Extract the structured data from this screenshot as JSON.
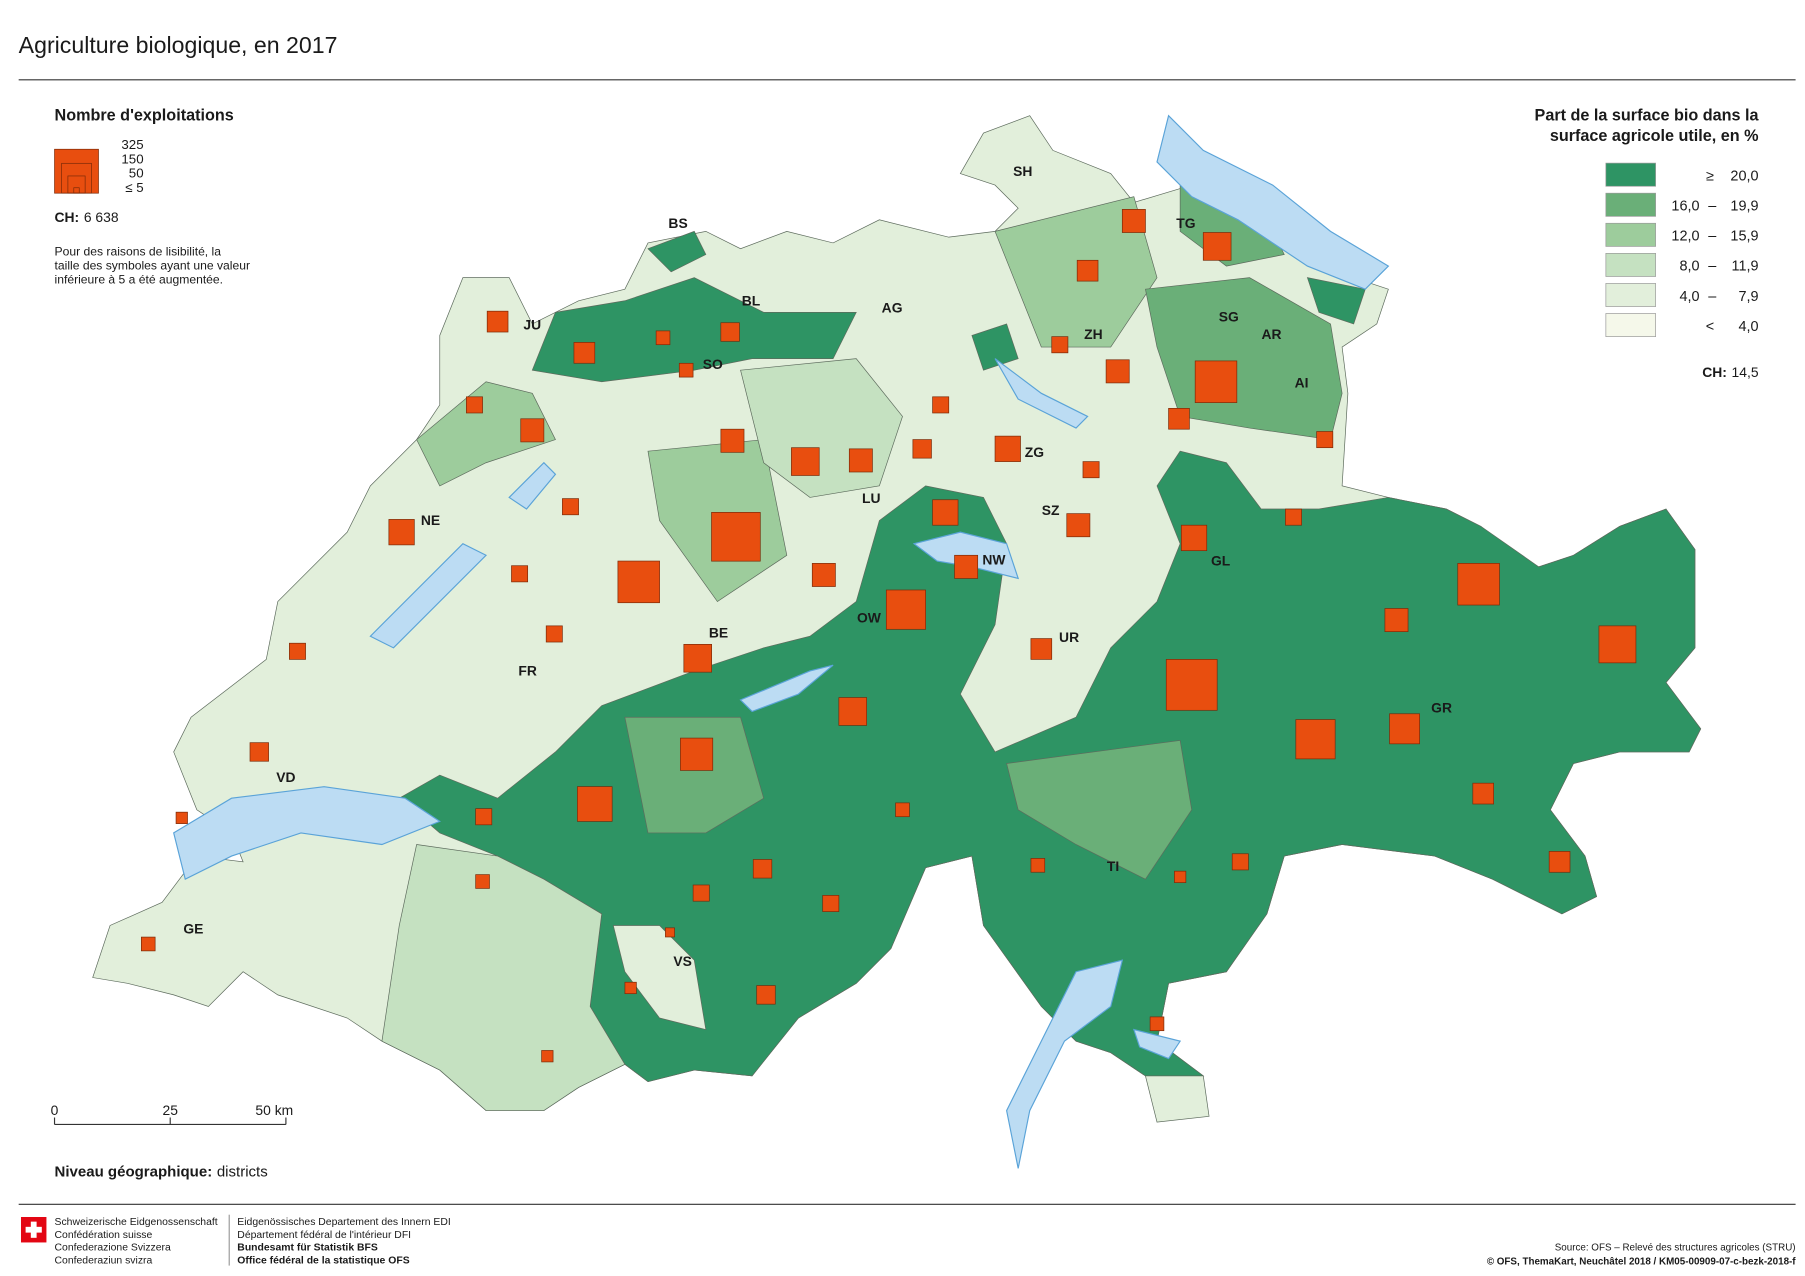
{
  "header": {
    "title": "Agriculture biologique, en 2017"
  },
  "symbol_legend": {
    "title": "Nombre d'exploitations",
    "sizes": [
      325,
      150,
      50,
      {
        "value": 5,
        "label": "≤ 5"
      }
    ],
    "total_label": "CH:",
    "total_value": "6 638",
    "note": [
      "Pour des raisons de lisibilité, la",
      "taille des symboles ayant une valeur",
      "inférieure à 5 a été augmentée."
    ]
  },
  "class_legend": {
    "title": [
      "Part de la surface bio dans la",
      "surface agricole utile, en %"
    ],
    "dash": "–",
    "classes": [
      {
        "color": "#2e9464",
        "lower": "≥",
        "upper": "20,0"
      },
      {
        "color": "#6aaf78",
        "lower": "16,0",
        "upper": "19,9"
      },
      {
        "color": "#9dcc9c",
        "lower": "12,0",
        "upper": "15,9"
      },
      {
        "color": "#c5e1c1",
        "lower": "8,0",
        "upper": "11,9"
      },
      {
        "color": "#e2efdb",
        "lower": "4,0",
        "upper": "7,9"
      },
      {
        "color": "#f5f8ea",
        "lower": "<",
        "upper": "4,0"
      }
    ],
    "total_label": "CH:",
    "total_value": "14,5"
  },
  "map": {
    "cantons": [
      "JU",
      "BS",
      "BL",
      "SO",
      "AG",
      "SH",
      "TG",
      "ZH",
      "SG",
      "AR",
      "AI",
      "ZG",
      "LU",
      "SZ",
      "NW",
      "GL",
      "OW",
      "NE",
      "BE",
      "UR",
      "FR",
      "GR",
      "VD",
      "TI",
      "GE",
      "VS"
    ],
    "symbols": [
      73,
      73,
      32,
      58,
      32,
      44,
      90,
      44,
      109,
      44,
      292,
      400,
      130,
      44,
      44,
      58,
      22,
      32,
      44,
      203,
      176,
      130,
      58,
      44,
      44,
      58,
      32,
      260,
      90,
      109,
      109,
      90,
      73,
      436,
      109,
      260,
      152,
      292,
      230,
      90,
      73,
      73,
      44,
      292,
      73,
      44,
      44,
      130,
      90,
      73,
      90,
      44,
      90,
      130,
      90,
      90,
      58,
      44,
      44,
      32,
      32,
      22,
      22,
      22,
      14,
      32
    ]
  },
  "scale": {
    "ticks": [
      "0",
      "25",
      "50 km"
    ]
  },
  "level": {
    "label": "Niveau géographique:",
    "value": "districts"
  },
  "footer": {
    "confederation": [
      "Schweizerische Eidgenossenschaft",
      "Confédération suisse",
      "Confederazione Svizzera",
      "Confederaziun svizra"
    ],
    "department": [
      "Eidgenössisches Departement des Innern EDI",
      "Département fédéral de l'intérieur DFI",
      "Bundesamt für Statistik BFS",
      "Office fédéral de la statistique OFS"
    ],
    "source": "Source: OFS – Relevé des structures agricoles (STRU)",
    "copyright": "© OFS, ThemaKart, Neuchâtel 2018 / KM05-00909-07-c-bezk-2018-f"
  }
}
